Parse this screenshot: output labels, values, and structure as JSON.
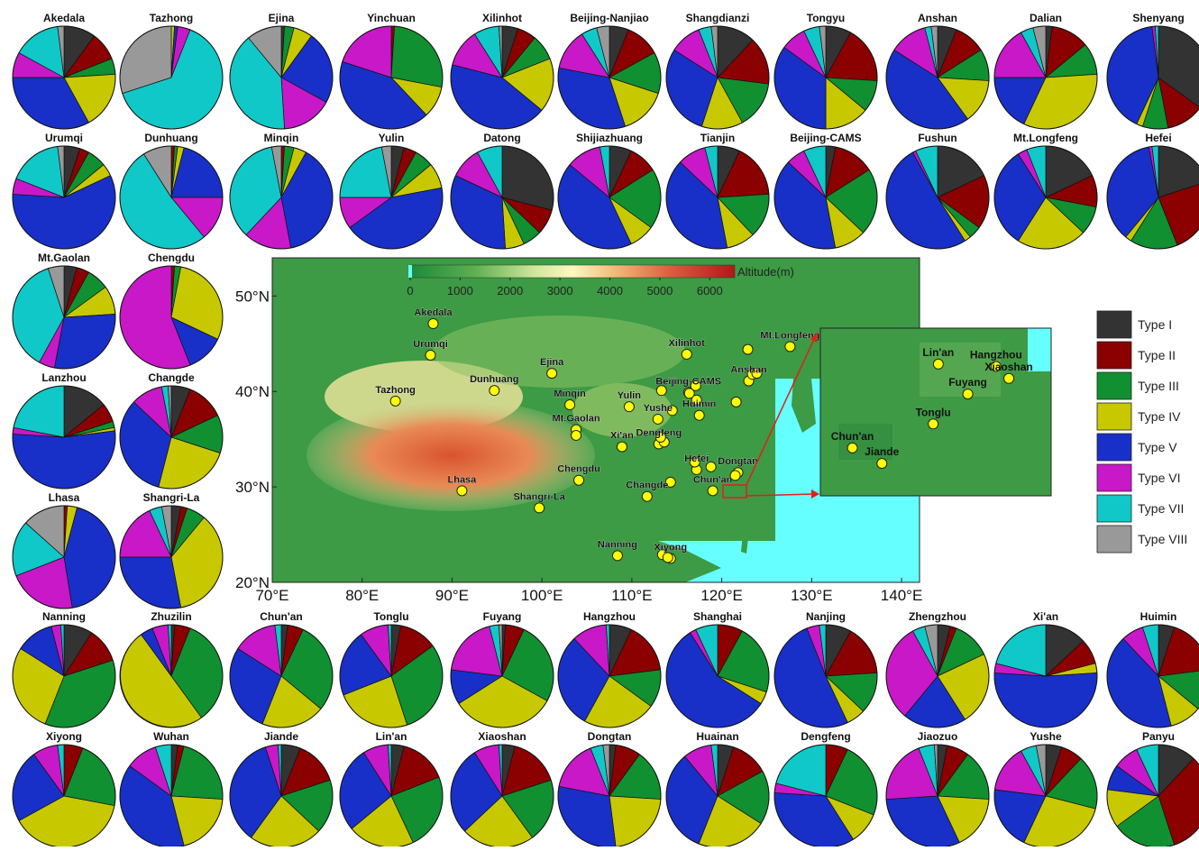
{
  "figure": {
    "legend_title": "",
    "legend_items": [
      "Type I",
      "Type II",
      "Type III",
      "Type IV",
      "Type V",
      "Type VI",
      "Type VII",
      "Type VIII"
    ],
    "type_colors": {
      "Type I": "#333333",
      "Type II": "#8b0000",
      "Type III": "#109030",
      "Type IV": "#c8c800",
      "Type V": "#1830c8",
      "Type VI": "#c818c8",
      "Type VII": "#10c8c8",
      "Type VIII": "#999999"
    }
  },
  "map": {
    "colorbar_label": "Altitude(m)",
    "colorbar_ticks": [
      "0",
      "1000",
      "2000",
      "3000",
      "4000",
      "5000",
      "6000"
    ],
    "colorbar_range": [
      0,
      6500
    ],
    "lon_ticks": [
      "70°E",
      "80°E",
      "90°E",
      "100°E",
      "110°E",
      "120°E",
      "130°E",
      "140°E"
    ],
    "lat_ticks": [
      "20°N",
      "30°N",
      "40°N",
      "50°N"
    ],
    "lon_range": [
      70,
      142
    ],
    "lat_range": [
      20,
      54
    ],
    "sea_color": "#66ffff",
    "sites": [
      {
        "name": "Akedala",
        "lon": 87.9,
        "lat": 47.1
      },
      {
        "name": "Urumqi",
        "lon": 87.6,
        "lat": 43.8
      },
      {
        "name": "Tazhong",
        "lon": 83.7,
        "lat": 39.0
      },
      {
        "name": "Dunhuang",
        "lon": 94.7,
        "lat": 40.1
      },
      {
        "name": "Ejina",
        "lon": 101.1,
        "lat": 41.9
      },
      {
        "name": "Minqin",
        "lon": 103.1,
        "lat": 38.6
      },
      {
        "name": "Yulin",
        "lon": 109.7,
        "lat": 38.4
      },
      {
        "name": "Mt.Gaolan",
        "lon": 103.8,
        "lat": 36.0
      },
      {
        "name": "Lanzhou",
        "lon": 103.8,
        "lat": 35.4
      },
      {
        "name": "Xi'an",
        "lon": 108.9,
        "lat": 34.2
      },
      {
        "name": "Xilinhot",
        "lon": 116.1,
        "lat": 43.9
      },
      {
        "name": "Beijing-CAMS",
        "lon": 116.3,
        "lat": 39.9
      },
      {
        "name": "Beijing-Nanjiao",
        "lon": 116.4,
        "lat": 39.8
      },
      {
        "name": "Shangdianzi",
        "lon": 117.1,
        "lat": 40.6
      },
      {
        "name": "Tianjin",
        "lon": 117.2,
        "lat": 39.1
      },
      {
        "name": "Shijiazhuang",
        "lon": 114.5,
        "lat": 38.0
      },
      {
        "name": "Yushe",
        "lon": 112.9,
        "lat": 37.1
      },
      {
        "name": "Datong",
        "lon": 113.3,
        "lat": 40.1
      },
      {
        "name": "Huimin",
        "lon": 117.5,
        "lat": 37.5
      },
      {
        "name": "Dengfeng",
        "lon": 113.0,
        "lat": 34.5
      },
      {
        "name": "Zhengzhou",
        "lon": 113.6,
        "lat": 34.7
      },
      {
        "name": "Jiaozuo",
        "lon": 113.2,
        "lat": 35.2
      },
      {
        "name": "Anshan",
        "lon": 123.0,
        "lat": 41.1
      },
      {
        "name": "Shenyang",
        "lon": 123.4,
        "lat": 41.8
      },
      {
        "name": "Fushun",
        "lon": 123.9,
        "lat": 41.9
      },
      {
        "name": "Dalian",
        "lon": 121.6,
        "lat": 38.9
      },
      {
        "name": "Tongyu",
        "lon": 122.9,
        "lat": 44.4
      },
      {
        "name": "Mt.Longfeng",
        "lon": 127.6,
        "lat": 44.7
      },
      {
        "name": "Hefei",
        "lon": 117.2,
        "lat": 31.8
      },
      {
        "name": "Huainan",
        "lon": 117.0,
        "lat": 32.6
      },
      {
        "name": "Nanjing",
        "lon": 118.8,
        "lat": 32.1
      },
      {
        "name": "Dongtan",
        "lon": 121.8,
        "lat": 31.5
      },
      {
        "name": "Shanghai",
        "lon": 121.5,
        "lat": 31.2
      },
      {
        "name": "Wuhan",
        "lon": 114.3,
        "lat": 30.5
      },
      {
        "name": "Changde",
        "lon": 111.7,
        "lat": 29.0
      },
      {
        "name": "Chengdu",
        "lon": 104.1,
        "lat": 30.7
      },
      {
        "name": "Lhasa",
        "lon": 91.1,
        "lat": 29.6
      },
      {
        "name": "Shangri-La",
        "lon": 99.7,
        "lat": 27.8
      },
      {
        "name": "Nanning",
        "lon": 108.4,
        "lat": 22.8
      },
      {
        "name": "Xiyong",
        "lon": 114.3,
        "lat": 22.5
      },
      {
        "name": "Panyu",
        "lon": 113.4,
        "lat": 22.9
      },
      {
        "name": "Zhuzilin",
        "lon": 114.0,
        "lat": 22.6
      },
      {
        "name": "Chun'an",
        "lon": 119.0,
        "lat": 29.6
      }
    ],
    "site_labels": [
      {
        "name": "Akedala",
        "lon": 87.9,
        "lat": 47.1
      },
      {
        "name": "Urumqi",
        "lon": 87.6,
        "lat": 43.8
      },
      {
        "name": "Tazhong",
        "lon": 83.7,
        "lat": 39.0
      },
      {
        "name": "Dunhuang",
        "lon": 94.7,
        "lat": 40.1
      },
      {
        "name": "Ejina",
        "lon": 101.1,
        "lat": 41.9
      },
      {
        "name": "Minqin",
        "lon": 103.1,
        "lat": 38.6
      },
      {
        "name": "Yulin",
        "lon": 109.7,
        "lat": 38.4
      },
      {
        "name": "Mt.Gaolan",
        "lon": 103.8,
        "lat": 36.0
      },
      {
        "name": "Xi'an",
        "lon": 108.9,
        "lat": 34.2
      },
      {
        "name": "Xilinhot",
        "lon": 116.1,
        "lat": 43.9
      },
      {
        "name": "Beijing-CAMS",
        "lon": 116.3,
        "lat": 39.9
      },
      {
        "name": "Yushe",
        "lon": 112.9,
        "lat": 37.1
      },
      {
        "name": "Huimin",
        "lon": 117.5,
        "lat": 37.5
      },
      {
        "name": "Dengfeng",
        "lon": 113.0,
        "lat": 34.5
      },
      {
        "name": "Anshan",
        "lon": 123.0,
        "lat": 41.1
      },
      {
        "name": "Mt.Longfeng",
        "lon": 127.6,
        "lat": 44.7
      },
      {
        "name": "Hefei",
        "lon": 117.2,
        "lat": 31.8
      },
      {
        "name": "Dongtan",
        "lon": 121.8,
        "lat": 31.5
      },
      {
        "name": "Chun'an",
        "lon": 119.0,
        "lat": 29.6
      },
      {
        "name": "Changde",
        "lon": 111.7,
        "lat": 29.0
      },
      {
        "name": "Chengdu",
        "lon": 104.1,
        "lat": 30.7
      },
      {
        "name": "Lhasa",
        "lon": 91.1,
        "lat": 29.6
      },
      {
        "name": "Shangri-La",
        "lon": 99.7,
        "lat": 27.8
      },
      {
        "name": "Nanning",
        "lon": 108.4,
        "lat": 22.8
      },
      {
        "name": "Xiyong",
        "lon": 114.3,
        "lat": 22.5
      }
    ],
    "inset_sites": [
      {
        "name": "Lin'an",
        "lon": 119.72,
        "lat": 30.3
      },
      {
        "name": "Hangzhou",
        "lon": 120.17,
        "lat": 30.28
      },
      {
        "name": "Fuyang",
        "lon": 119.95,
        "lat": 30.05
      },
      {
        "name": "Xiaoshan",
        "lon": 120.27,
        "lat": 30.18
      },
      {
        "name": "Tonglu",
        "lon": 119.68,
        "lat": 29.8
      },
      {
        "name": "Chun'an",
        "lon": 119.05,
        "lat": 29.6
      },
      {
        "name": "Jiande",
        "lon": 119.28,
        "lat": 29.47
      }
    ],
    "inset_lon_range": [
      118.8,
      120.6
    ],
    "inset_lat_range": [
      29.2,
      30.6
    ]
  },
  "chart_data": {
    "type": "pie",
    "categories": [
      "Type I",
      "Type II",
      "Type III",
      "Type IV",
      "Type V",
      "Type VI",
      "Type VII",
      "Type VIII"
    ],
    "pies": [
      {
        "name": "Akedala",
        "values": [
          10,
          9,
          5,
          18,
          33,
          8,
          15,
          2
        ]
      },
      {
        "name": "Tazhong",
        "values": [
          0,
          0,
          0,
          1,
          1,
          4,
          64,
          30
        ]
      },
      {
        "name": "Ejina",
        "values": [
          1,
          0,
          3,
          6,
          23,
          16,
          40,
          11
        ]
      },
      {
        "name": "Yinchuan",
        "values": [
          0,
          1,
          27,
          10,
          42,
          20,
          0,
          0
        ]
      },
      {
        "name": "Xilinhot",
        "values": [
          5,
          6,
          8,
          17,
          43,
          12,
          8,
          1
        ]
      },
      {
        "name": "Beijing-Nanjiao",
        "values": [
          6,
          11,
          13,
          15,
          33,
          13,
          5,
          4
        ]
      },
      {
        "name": "Shangdianzi",
        "values": [
          12,
          15,
          15,
          13,
          29,
          10,
          4,
          2
        ]
      },
      {
        "name": "Tongyu",
        "values": [
          8,
          18,
          10,
          14,
          35,
          8,
          5,
          2
        ]
      },
      {
        "name": "Anshan",
        "values": [
          6,
          10,
          10,
          14,
          44,
          12,
          2,
          2
        ]
      },
      {
        "name": "Dalian",
        "values": [
          2,
          12,
          10,
          33,
          18,
          17,
          4,
          4
        ]
      },
      {
        "name": "Shenyang",
        "values": [
          35,
          12,
          8,
          2,
          41,
          1,
          1,
          0
        ]
      },
      {
        "name": "Urumqi",
        "values": [
          5,
          3,
          6,
          4,
          58,
          5,
          17,
          2
        ]
      },
      {
        "name": "Dunhuang",
        "values": [
          0,
          1,
          1,
          2,
          21,
          14,
          52,
          9
        ]
      },
      {
        "name": "Minqin",
        "values": [
          0,
          1,
          3,
          4,
          39,
          15,
          35,
          3
        ]
      },
      {
        "name": "Yulin",
        "values": [
          4,
          4,
          6,
          8,
          43,
          10,
          22,
          3
        ]
      },
      {
        "name": "Datong",
        "values": [
          29,
          8,
          6,
          6,
          33,
          10,
          8,
          0
        ]
      },
      {
        "name": "Shijiazhuang",
        "values": [
          7,
          9,
          19,
          8,
          43,
          11,
          3,
          0
        ]
      },
      {
        "name": "Tianjin",
        "values": [
          7,
          17,
          14,
          9,
          40,
          9,
          4,
          0
        ]
      },
      {
        "name": "Beijing-CAMS",
        "values": [
          3,
          13,
          21,
          10,
          40,
          6,
          7,
          0
        ]
      },
      {
        "name": "Fushun",
        "values": [
          18,
          17,
          4,
          2,
          51,
          1,
          7,
          0
        ]
      },
      {
        "name": "Mt.Longfeng",
        "values": [
          18,
          10,
          9,
          22,
          32,
          3,
          6,
          0
        ]
      },
      {
        "name": "Hefei",
        "values": [
          20,
          24,
          15,
          2,
          36,
          1,
          2,
          0
        ]
      },
      {
        "name": "Mt.Gaolan",
        "values": [
          4,
          4,
          7,
          9,
          29,
          5,
          37,
          5
        ]
      },
      {
        "name": "Chengdu",
        "values": [
          0,
          1,
          2,
          29,
          12,
          56,
          0,
          0
        ]
      },
      {
        "name": "Lanzhou",
        "values": [
          14,
          6,
          2,
          1,
          53,
          2,
          22,
          0
        ]
      },
      {
        "name": "Changde",
        "values": [
          6,
          12,
          12,
          24,
          33,
          10,
          2,
          1
        ]
      },
      {
        "name": "Lhasa",
        "values": [
          0,
          1,
          0,
          3,
          42,
          21,
          17,
          13
        ]
      },
      {
        "name": "Shangri-La",
        "values": [
          3,
          2,
          6,
          36,
          28,
          18,
          4,
          3
        ]
      },
      {
        "name": "Nanning",
        "values": [
          9,
          11,
          36,
          28,
          12,
          3,
          1,
          0
        ]
      },
      {
        "name": "Zhuzilin",
        "values": [
          1,
          5,
          34,
          50,
          4,
          5,
          1,
          0
        ]
      },
      {
        "name": "Chun'an",
        "values": [
          2,
          5,
          29,
          20,
          28,
          14,
          2,
          0
        ]
      },
      {
        "name": "Tonglu",
        "values": [
          3,
          12,
          30,
          24,
          21,
          9,
          1,
          0
        ]
      },
      {
        "name": "Fuyang",
        "values": [
          1,
          6,
          26,
          33,
          11,
          19,
          3,
          1
        ]
      },
      {
        "name": "Hangzhou",
        "values": [
          7,
          16,
          12,
          23,
          30,
          11,
          1,
          0
        ]
      },
      {
        "name": "Shanghai",
        "values": [
          0,
          8,
          22,
          4,
          57,
          2,
          7,
          0
        ]
      },
      {
        "name": "Nanjing",
        "values": [
          8,
          16,
          13,
          6,
          51,
          4,
          2,
          0
        ]
      },
      {
        "name": "Zhengzhou",
        "values": [
          4,
          2,
          12,
          23,
          20,
          31,
          4,
          4
        ]
      },
      {
        "name": "Xi'an",
        "values": [
          13,
          8,
          0,
          3,
          52,
          3,
          21,
          0
        ]
      },
      {
        "name": "Huimin",
        "values": [
          5,
          18,
          13,
          10,
          42,
          7,
          5,
          0
        ]
      },
      {
        "name": "Xiyong",
        "values": [
          0,
          6,
          22,
          39,
          23,
          8,
          2,
          0
        ]
      },
      {
        "name": "Wuhan",
        "values": [
          2,
          2,
          22,
          20,
          39,
          10,
          5,
          0
        ]
      },
      {
        "name": "Jiande",
        "values": [
          6,
          14,
          17,
          23,
          35,
          4,
          1,
          0
        ]
      },
      {
        "name": "Lin'an",
        "values": [
          4,
          15,
          24,
          21,
          27,
          8,
          1,
          0
        ]
      },
      {
        "name": "Xiaoshan",
        "values": [
          4,
          16,
          20,
          23,
          28,
          8,
          1,
          0
        ]
      },
      {
        "name": "Dongtan",
        "values": [
          2,
          8,
          16,
          22,
          30,
          16,
          4,
          2
        ]
      },
      {
        "name": "Huainan",
        "values": [
          5,
          12,
          17,
          22,
          33,
          9,
          2,
          0
        ]
      },
      {
        "name": "Dengfeng",
        "values": [
          0,
          7,
          24,
          10,
          35,
          3,
          21,
          0
        ]
      },
      {
        "name": "Jiaozuo",
        "values": [
          3,
          7,
          16,
          17,
          31,
          20,
          5,
          1
        ]
      },
      {
        "name": "Yushe",
        "values": [
          5,
          7,
          17,
          28,
          20,
          15,
          5,
          3
        ]
      },
      {
        "name": "Panyu",
        "values": [
          12,
          33,
          20,
          12,
          8,
          8,
          7,
          0
        ]
      }
    ]
  }
}
